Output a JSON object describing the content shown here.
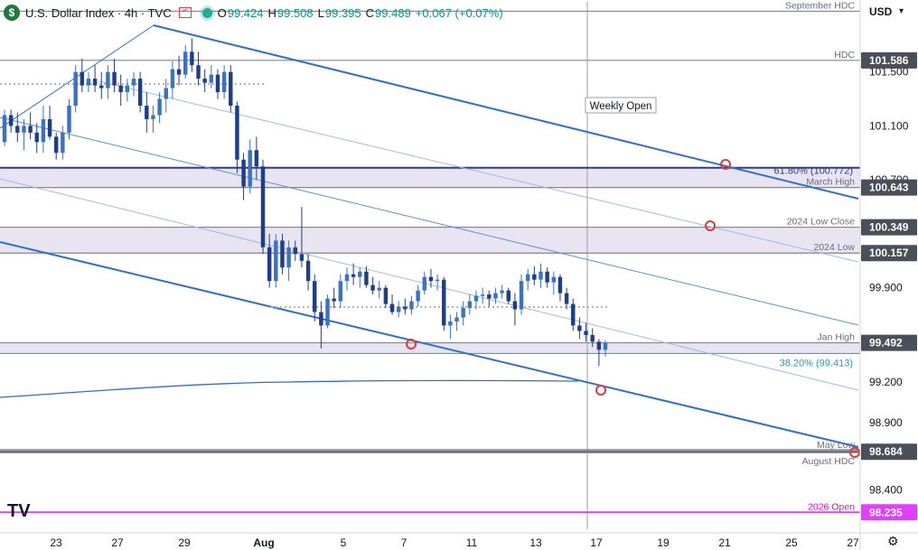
{
  "header": {
    "symbol": "U.S. Dollar Index · 4h · TVC",
    "open_key": "O",
    "open": "99.424",
    "high_key": "H",
    "high": "99.508",
    "low_key": "L",
    "low": "99.395",
    "close_key": "C",
    "close": "99.489",
    "change": "+0.067 (+0.07%)"
  },
  "currency": "USD",
  "chart_data": {
    "type": "candlestick",
    "x_ticks": [
      "23",
      "27",
      "29",
      "Aug",
      "5",
      "7",
      "11",
      "13",
      "17",
      "19",
      "21",
      "25",
      "27"
    ],
    "y_ticks": [
      "101.500",
      "101.100",
      "100.700",
      "99.900",
      "99.200",
      "98.900",
      "98.400"
    ],
    "ylim": [
      98.15,
      102.02
    ],
    "price_levels": [
      {
        "label": "September HDC",
        "value": 101.95,
        "axis": ""
      },
      {
        "label": "HDC",
        "value": 101.586,
        "axis": "101.586"
      },
      {
        "label": "March High",
        "value": 100.643,
        "axis": "100.643"
      },
      {
        "label": "2024 Low Close",
        "value": 100.349,
        "axis": "100.349"
      },
      {
        "label": "2024 Low",
        "value": 100.157,
        "axis": "100.157"
      },
      {
        "label": "Jan High",
        "value": 99.492,
        "axis": "99.492"
      },
      {
        "label": "May Low",
        "value": 98.7,
        "axis": ""
      },
      {
        "label": "August HDC",
        "value": 98.684,
        "axis": "98.684"
      },
      {
        "label": "2026 Open",
        "value": 98.235,
        "axis": "98.235"
      }
    ],
    "fib_labels": [
      {
        "label": "61.80% (100.772)",
        "value": 100.772
      },
      {
        "label": "38.20% (99.413)",
        "value": 99.413
      }
    ],
    "annotations": [
      "Weekly Open"
    ],
    "candles": [
      [
        100.98,
        101.22,
        100.95,
        101.18
      ],
      [
        101.18,
        101.22,
        101.05,
        101.1
      ],
      [
        101.1,
        101.2,
        100.98,
        101.05
      ],
      [
        101.05,
        101.15,
        100.92,
        101.1
      ],
      [
        101.1,
        101.2,
        101.0,
        101.05
      ],
      [
        101.05,
        101.12,
        100.9,
        100.98
      ],
      [
        100.98,
        101.25,
        100.9,
        101.15
      ],
      [
        101.15,
        101.25,
        101.0,
        101.02
      ],
      [
        101.02,
        101.05,
        100.85,
        100.9
      ],
      [
        100.9,
        101.1,
        100.85,
        101.05
      ],
      [
        101.05,
        101.3,
        101.0,
        101.25
      ],
      [
        101.25,
        101.55,
        101.2,
        101.5
      ],
      [
        101.5,
        101.6,
        101.35,
        101.4
      ],
      [
        101.4,
        101.5,
        101.35,
        101.45
      ],
      [
        101.45,
        101.55,
        101.35,
        101.4
      ],
      [
        101.4,
        101.5,
        101.3,
        101.38
      ],
      [
        101.38,
        101.55,
        101.3,
        101.5
      ],
      [
        101.5,
        101.6,
        101.35,
        101.4
      ],
      [
        101.4,
        101.48,
        101.25,
        101.35
      ],
      [
        101.35,
        101.45,
        101.28,
        101.4
      ],
      [
        101.4,
        101.5,
        101.32,
        101.45
      ],
      [
        101.45,
        101.5,
        101.2,
        101.25
      ],
      [
        101.25,
        101.35,
        101.05,
        101.15
      ],
      [
        101.15,
        101.25,
        101.05,
        101.18
      ],
      [
        101.18,
        101.35,
        101.12,
        101.3
      ],
      [
        101.3,
        101.45,
        101.2,
        101.38
      ],
      [
        101.38,
        101.58,
        101.3,
        101.52
      ],
      [
        101.52,
        101.62,
        101.4,
        101.48
      ],
      [
        101.48,
        101.7,
        101.45,
        101.65
      ],
      [
        101.65,
        101.75,
        101.5,
        101.55
      ],
      [
        101.55,
        101.65,
        101.4,
        101.45
      ],
      [
        101.45,
        101.52,
        101.35,
        101.42
      ],
      [
        101.42,
        101.55,
        101.38,
        101.48
      ],
      [
        101.48,
        101.52,
        101.3,
        101.35
      ],
      [
        101.35,
        101.55,
        101.3,
        101.5
      ],
      [
        101.5,
        101.55,
        101.2,
        101.25
      ],
      [
        101.25,
        101.28,
        100.75,
        100.85
      ],
      [
        100.85,
        100.9,
        100.55,
        100.65
      ],
      [
        100.65,
        101.0,
        100.6,
        100.92
      ],
      [
        100.92,
        101.02,
        100.7,
        100.8
      ],
      [
        100.8,
        100.85,
        100.15,
        100.2
      ],
      [
        100.2,
        100.3,
        99.9,
        99.95
      ],
      [
        99.95,
        100.3,
        99.9,
        100.25
      ],
      [
        100.25,
        100.3,
        100.0,
        100.05
      ],
      [
        100.05,
        100.25,
        99.95,
        100.2
      ],
      [
        100.2,
        100.25,
        100.1,
        100.15
      ],
      [
        100.15,
        100.5,
        100.05,
        100.1
      ],
      [
        100.1,
        100.15,
        99.88,
        99.95
      ],
      [
        99.95,
        100.0,
        99.65,
        99.72
      ],
      [
        99.72,
        99.8,
        99.45,
        99.62
      ],
      [
        99.62,
        99.85,
        99.6,
        99.82
      ],
      [
        99.82,
        99.9,
        99.75,
        99.8
      ],
      [
        99.8,
        100.0,
        99.75,
        99.95
      ],
      [
        99.95,
        100.05,
        99.88,
        100.0
      ],
      [
        100.0,
        100.08,
        99.92,
        99.98
      ],
      [
        99.98,
        100.05,
        99.9,
        100.02
      ],
      [
        100.02,
        100.06,
        99.9,
        99.92
      ],
      [
        99.92,
        99.98,
        99.85,
        99.88
      ],
      [
        99.88,
        99.95,
        99.82,
        99.9
      ],
      [
        99.9,
        99.92,
        99.75,
        99.78
      ],
      [
        99.78,
        99.85,
        99.7,
        99.72
      ],
      [
        99.72,
        99.8,
        99.68,
        99.76
      ],
      [
        99.76,
        99.82,
        99.7,
        99.74
      ],
      [
        99.74,
        99.84,
        99.7,
        99.8
      ],
      [
        99.8,
        99.92,
        99.76,
        99.88
      ],
      [
        99.88,
        100.02,
        99.85,
        99.98
      ],
      [
        99.98,
        100.04,
        99.9,
        99.95
      ],
      [
        99.95,
        100.0,
        99.88,
        99.96
      ],
      [
        99.96,
        99.98,
        99.58,
        99.62
      ],
      [
        99.62,
        99.7,
        99.52,
        99.65
      ],
      [
        99.65,
        99.72,
        99.58,
        99.68
      ],
      [
        99.68,
        99.8,
        99.62,
        99.75
      ],
      [
        99.75,
        99.85,
        99.7,
        99.8
      ],
      [
        99.8,
        99.88,
        99.74,
        99.84
      ],
      [
        99.84,
        99.9,
        99.78,
        99.85
      ],
      [
        99.85,
        99.88,
        99.76,
        99.82
      ],
      [
        99.82,
        99.9,
        99.78,
        99.86
      ],
      [
        99.86,
        99.92,
        99.82,
        99.88
      ],
      [
        99.88,
        99.9,
        99.78,
        99.8
      ],
      [
        99.8,
        99.86,
        99.62,
        99.74
      ],
      [
        99.74,
        100.0,
        99.7,
        99.95
      ],
      [
        99.95,
        100.04,
        99.88,
        100.0
      ],
      [
        100.0,
        100.06,
        99.92,
        99.96
      ],
      [
        99.96,
        100.08,
        99.9,
        100.02
      ],
      [
        100.02,
        100.05,
        99.9,
        99.94
      ],
      [
        99.94,
        100.02,
        99.85,
        99.98
      ],
      [
        99.98,
        100.0,
        99.8,
        99.86
      ],
      [
        99.86,
        99.9,
        99.74,
        99.78
      ],
      [
        99.78,
        99.82,
        99.58,
        99.62
      ],
      [
        99.62,
        99.68,
        99.52,
        99.58
      ],
      [
        99.58,
        99.64,
        99.5,
        99.55
      ],
      [
        99.55,
        99.6,
        99.46,
        99.5
      ],
      [
        99.5,
        99.52,
        99.32,
        99.44
      ],
      [
        99.44,
        99.51,
        99.39,
        99.49
      ]
    ]
  }
}
